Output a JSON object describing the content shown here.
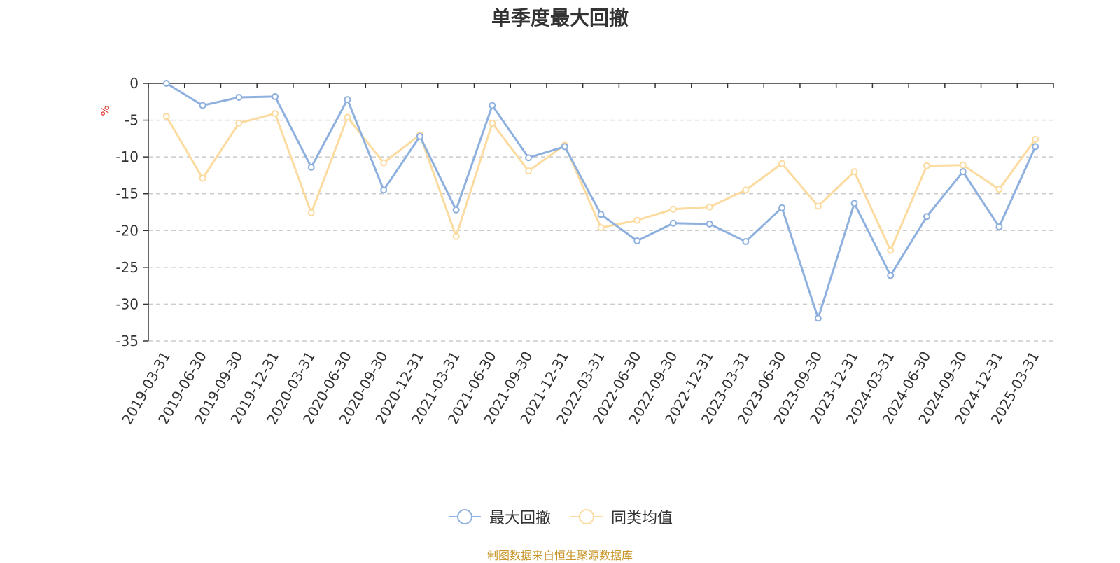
{
  "chart_data": {
    "type": "line",
    "title": "单季度最大回撤",
    "ylabel": "%",
    "ylim": [
      -35,
      0
    ],
    "yticks": [
      0,
      -5,
      -10,
      -15,
      -20,
      -25,
      -30,
      -35
    ],
    "grid": true,
    "legend_position": "bottom-center",
    "categories": [
      "2019-03-31",
      "2019-06-30",
      "2019-09-30",
      "2019-12-31",
      "2020-03-31",
      "2020-06-30",
      "2020-09-30",
      "2020-12-31",
      "2021-03-31",
      "2021-06-30",
      "2021-09-30",
      "2021-12-31",
      "2022-03-31",
      "2022-06-30",
      "2022-09-30",
      "2022-12-31",
      "2023-03-31",
      "2023-06-30",
      "2023-09-30",
      "2023-12-31",
      "2024-03-31",
      "2024-06-30",
      "2024-09-30",
      "2024-12-31",
      "2025-03-31"
    ],
    "series": [
      {
        "name": "最大回撤",
        "color": "#8eb0de",
        "values": [
          0,
          -3.0,
          -1.9,
          -1.8,
          -11.4,
          -2.2,
          -14.5,
          -7.2,
          -17.2,
          -3.0,
          -10.1,
          -8.6,
          -17.8,
          -21.4,
          -19.0,
          -19.1,
          -21.5,
          -16.9,
          -31.9,
          -16.3,
          -26.1,
          -18.1,
          -12.0,
          -19.5,
          -8.6
        ]
      },
      {
        "name": "同类均值",
        "color": "#fbdb9f",
        "values": [
          -4.5,
          -12.9,
          -5.4,
          -4.1,
          -17.6,
          -4.6,
          -10.8,
          -7.0,
          -20.8,
          -5.4,
          -11.9,
          -8.4,
          -19.6,
          -18.6,
          -17.1,
          -16.8,
          -14.5,
          -10.9,
          -16.7,
          -12.0,
          -22.7,
          -11.2,
          -11.1,
          -14.4,
          -7.6
        ]
      }
    ]
  },
  "source_note": "制图数据来自恒生聚源数据库"
}
